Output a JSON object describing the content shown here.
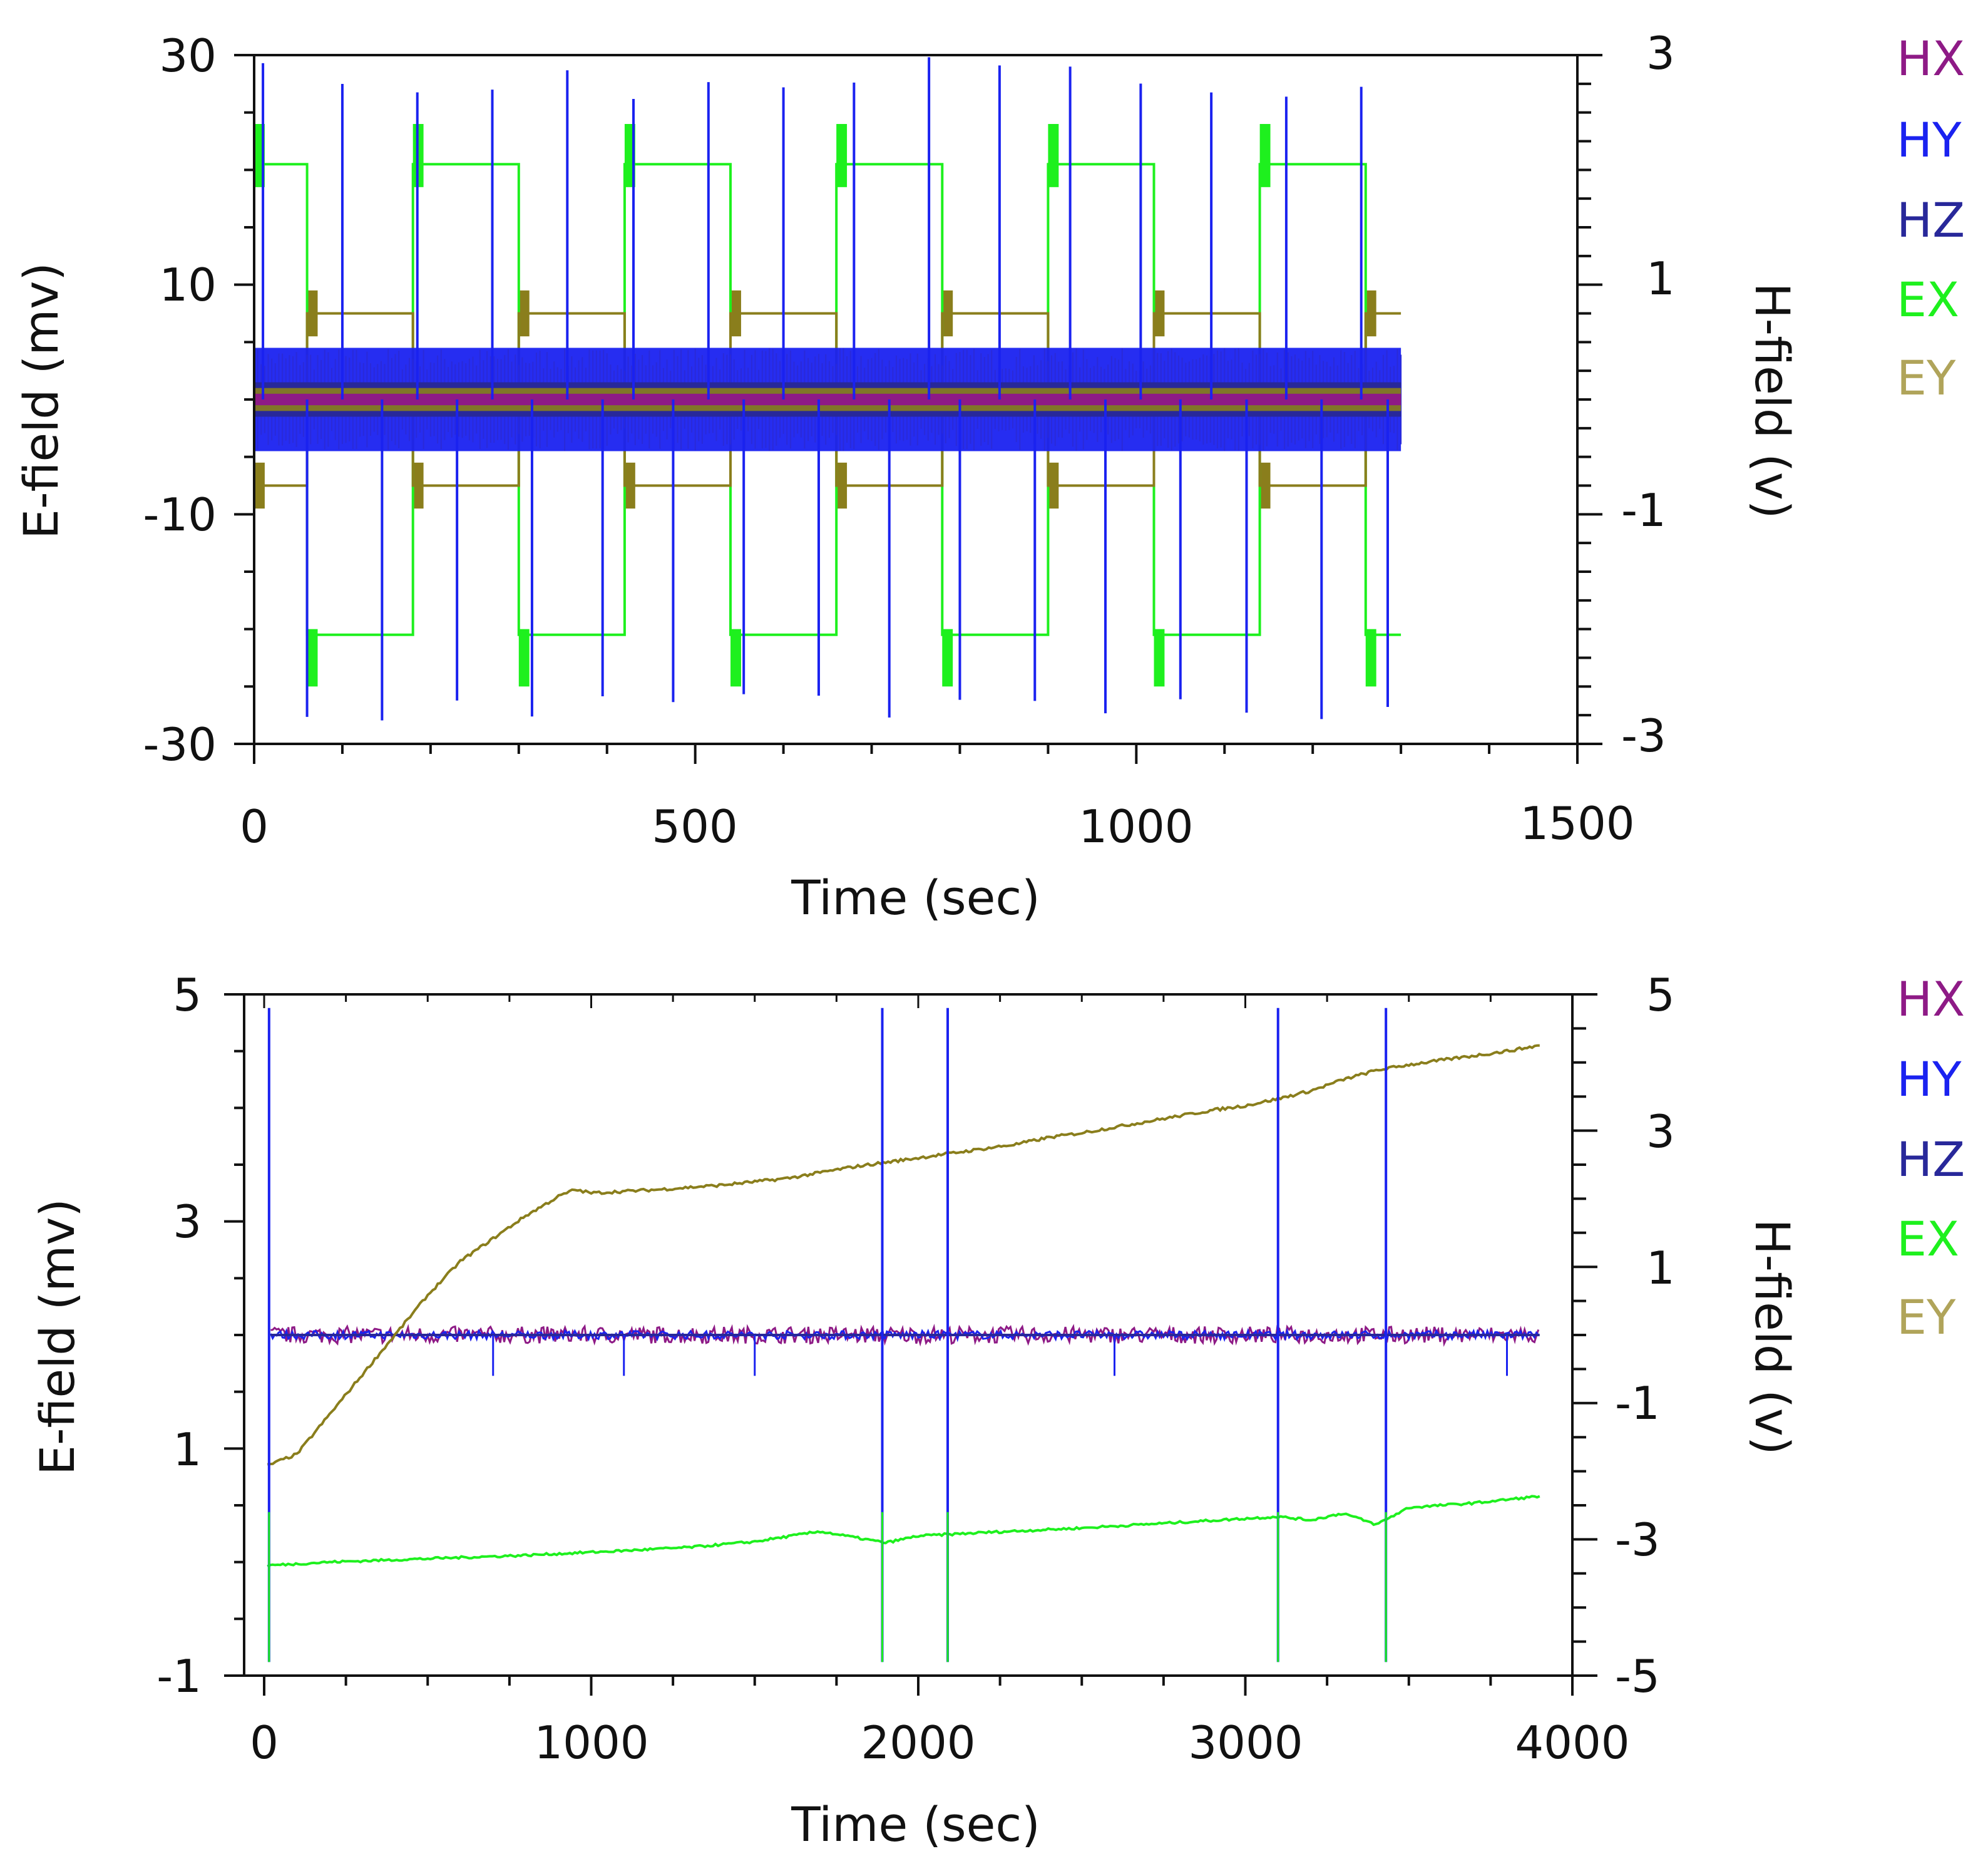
{
  "colors": {
    "HX": "#8e1a86",
    "HY": "#1a22f0",
    "HZ": "#28289a",
    "EX": "#1ef01e",
    "EY_line": "#8a7e1c",
    "EY_legend": "#b0a45a"
  },
  "chart_data": [
    {
      "type": "line",
      "xlabel": "Time (sec)",
      "ylabel_left": "E-field (mv)",
      "ylabel_right": "H-field (v)",
      "xlim": [
        0,
        1500
      ],
      "ylim_left": [
        -30,
        30
      ],
      "ylim_right": [
        -3,
        3
      ],
      "xticks": [
        0,
        500,
        1000,
        1500
      ],
      "yticks_left": [
        -30,
        -10,
        10,
        30
      ],
      "yticks_right": [
        -3,
        -1,
        1,
        3
      ],
      "data_xmax": 1300,
      "switch_period_sec": 120,
      "first_switch_sec": 60,
      "spike_times_sec": [
        10,
        60,
        100,
        145,
        185,
        230,
        270,
        315,
        355,
        395,
        430,
        475,
        515,
        555,
        600,
        640,
        680,
        720,
        765,
        800,
        845,
        885,
        925,
        965,
        1005,
        1050,
        1085,
        1125,
        1170,
        1210,
        1255,
        1285
      ],
      "series_summary": {
        "EX": {
          "high_mv": 20.5,
          "low_mv": -20.5,
          "plateau_high": [
            18.5,
            24
          ],
          "plateau_low": [
            -20,
            -25
          ]
        },
        "EY": {
          "high_mv": 7.5,
          "low_mv": -7.5,
          "plateau_high": [
            5.5,
            9.5
          ],
          "plateau_low": [
            -5.5,
            -9.5
          ]
        },
        "HY": {
          "band_v": [
            -0.45,
            0.45
          ],
          "spike_v": [
            -2.8,
            3
          ]
        },
        "HZ": {
          "band_v": [
            -0.15,
            0.15
          ]
        },
        "HX": {
          "band_v": [
            -0.05,
            0.05
          ]
        }
      },
      "legend": [
        "HX",
        "HY",
        "HZ",
        "EX",
        "EY"
      ]
    },
    {
      "type": "line",
      "xlabel": "Time (sec)",
      "ylabel_left": "E-field (mv)",
      "ylabel_right": "H-field (v)",
      "xlim": [
        0,
        4000
      ],
      "ylim_left": [
        -1,
        5
      ],
      "ylim_right": [
        -5,
        5
      ],
      "xticks": [
        0,
        1000,
        2000,
        3000,
        4000
      ],
      "yticks_left": [
        -1,
        1,
        3,
        5
      ],
      "yticks_right": [
        -5,
        -3,
        -1,
        1,
        3,
        5
      ],
      "data_xmax": 3900,
      "spike_times_sec": [
        15,
        1890,
        2090,
        3100,
        3430
      ],
      "EY_mv": {
        "x": [
          10,
          100,
          200,
          300,
          400,
          500,
          600,
          700,
          800,
          900,
          950,
          1000,
          1200,
          1400,
          1500,
          1600,
          1700,
          1800,
          1900,
          2000,
          2100,
          2200,
          2300,
          2400,
          2500,
          2600,
          2700,
          2800,
          2900,
          3000,
          3100,
          3200,
          3300,
          3400,
          3500,
          3600,
          3700,
          3800,
          3900
        ],
        "values": [
          0.85,
          0.95,
          1.3,
          1.65,
          2.0,
          2.35,
          2.65,
          2.85,
          3.05,
          3.22,
          3.28,
          3.25,
          3.28,
          3.32,
          3.35,
          3.38,
          3.43,
          3.48,
          3.52,
          3.56,
          3.6,
          3.64,
          3.68,
          3.74,
          3.78,
          3.83,
          3.88,
          3.93,
          3.98,
          4.02,
          4.08,
          4.15,
          4.25,
          4.33,
          4.38,
          4.42,
          4.46,
          4.5,
          4.55
        ]
      },
      "EX_mv": {
        "x": [
          10,
          200,
          500,
          800,
          1100,
          1300,
          1500,
          1700,
          1800,
          1900,
          2000,
          2200,
          2500,
          2800,
          3100,
          3200,
          3300,
          3400,
          3500,
          3700,
          3900
        ],
        "values": [
          -0.03,
          0.0,
          0.03,
          0.06,
          0.1,
          0.13,
          0.18,
          0.27,
          0.22,
          0.17,
          0.23,
          0.26,
          0.3,
          0.35,
          0.4,
          0.37,
          0.43,
          0.33,
          0.48,
          0.52,
          0.58
        ]
      },
      "H_baseline_v": 0.0,
      "legend": [
        "HX",
        "HY",
        "HZ",
        "EX",
        "EY"
      ]
    }
  ]
}
